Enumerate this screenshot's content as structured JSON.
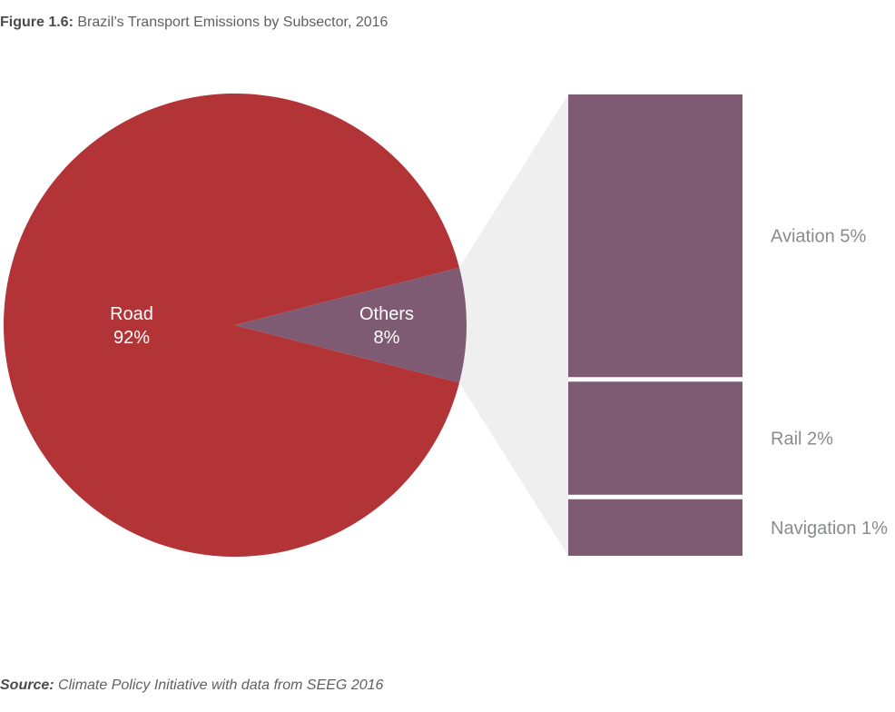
{
  "figure": {
    "title_prefix": "Figure 1.6:",
    "title": "Brazil’s Transport Emissions by Subsector, 2016",
    "source_prefix": "Source:",
    "source": "Climate Policy Initiative with data from SEEG 2016"
  },
  "chart_data": [
    {
      "type": "pie",
      "categories": [
        "Road",
        "Others"
      ],
      "values": [
        92,
        8
      ],
      "value_labels": [
        "92%",
        "8%"
      ],
      "colors": [
        "#b23437",
        "#7f5a73"
      ],
      "exploded_category": "Others"
    },
    {
      "type": "bar",
      "stacked": true,
      "categories": [
        "Aviation",
        "Rail",
        "Navigation"
      ],
      "values": [
        5,
        2,
        1
      ],
      "labels": [
        "Aviation 5%",
        "Rail 2%",
        "Navigation 1%"
      ],
      "colors": [
        "#7f5a73",
        "#7f5a73",
        "#7f5a73"
      ],
      "connector_color": "#efefef"
    }
  ]
}
